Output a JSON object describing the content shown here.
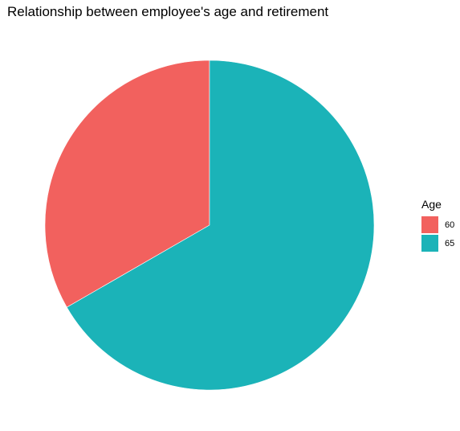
{
  "chart_data": {
    "type": "pie",
    "title": "Relationship between employee's age and retirement",
    "legend": {
      "title": "Age",
      "placement": "right"
    },
    "categories": [
      "60",
      "65"
    ],
    "values": [
      33.3,
      66.7
    ],
    "colors": [
      "#F2615E",
      "#1BB3B8"
    ]
  }
}
